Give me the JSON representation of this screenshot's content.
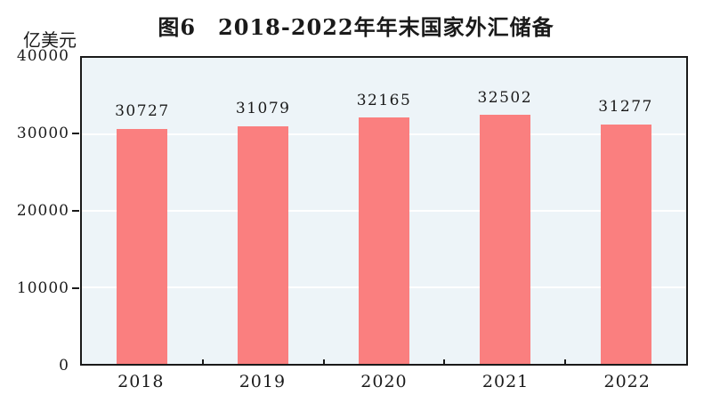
{
  "chart_data": {
    "type": "bar",
    "title": "图6　2018-2022年年末国家外汇储备",
    "unit_label": "亿美元",
    "categories": [
      "2018",
      "2019",
      "2020",
      "2021",
      "2022"
    ],
    "values": [
      30727,
      31079,
      32165,
      32502,
      31277
    ],
    "data_labels": [
      "30727",
      "31079",
      "32165",
      "32502",
      "31277"
    ],
    "xlabel": "",
    "ylabel": "亿美元",
    "ylim": [
      0,
      40000
    ],
    "yticks": [
      0,
      10000,
      20000,
      30000,
      40000
    ],
    "grid": true,
    "legend_position": "none",
    "colors": {
      "bar_fill": "#fa7f7f",
      "plot_background": "#edf4f8",
      "gridline": "#ffffff",
      "axis": "#1a1a1a",
      "text": "#1a1a1a"
    }
  }
}
